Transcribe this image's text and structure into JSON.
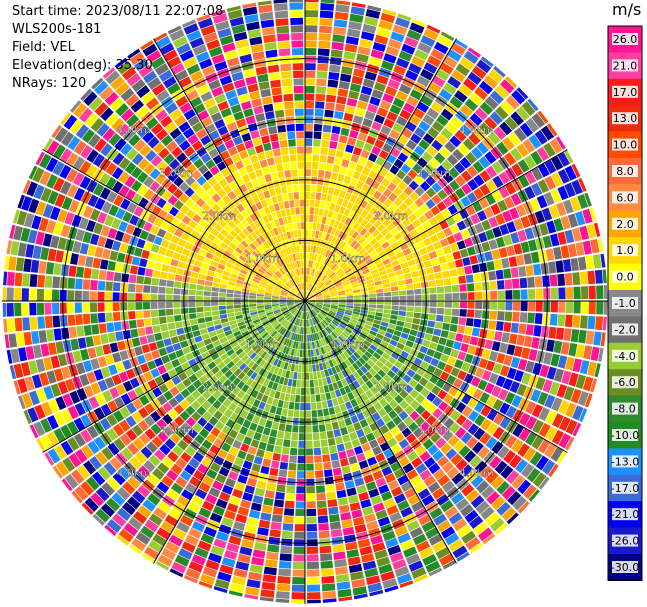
{
  "header": {
    "start_time": "Start time: 2023/08/11 22:07:08",
    "instrument": "WLS200s-181",
    "field": "Field: VEL",
    "elevation": "Elevation(deg): 35.30",
    "nrays": "NRays: 120"
  },
  "chart_data": {
    "type": "ppi-scan",
    "field": "VEL",
    "units": "m/s",
    "range_rings_km": [
      1.0,
      2.0,
      3.0,
      4.0
    ],
    "range_labels": [
      "1.0km",
      "2.0km",
      "3.0km",
      "4.0km"
    ],
    "max_range_km": 5.0,
    "spoke_angles_deg": [
      0,
      30,
      60,
      90,
      120,
      150,
      180,
      210,
      240,
      270,
      300,
      330
    ],
    "nrays": 120,
    "colorbar": {
      "unit_label": "m/s",
      "ticks": [
        "26.0",
        "21.0",
        "17.0",
        "13.0",
        "10.0",
        "8.0",
        "6.0",
        "2.0",
        "1.0",
        "0.0",
        "-1.0",
        "-2.0",
        "-4.0",
        "-6.0",
        "-8.0",
        "-10.0",
        "-13.0",
        "-17.0",
        "-21.0",
        "-26.0",
        "-30.0"
      ],
      "colors": [
        "#ff1493",
        "#ff3fa0",
        "#ff1a1a",
        "#ee2c0c",
        "#ff4a00",
        "#ff6a3a",
        "#ff8a40",
        "#ffa500",
        "#ffd700",
        "#ffff00",
        "#888888",
        "#707070",
        "#9acd32",
        "#6b8e23",
        "#2e8b2e",
        "#228b22",
        "#1e90ff",
        "#3b6bd6",
        "#0000ee",
        "#1a1acd",
        "#000080"
      ]
    },
    "colors": {
      "background": "#ffffff",
      "ring": "#000000"
    }
  }
}
